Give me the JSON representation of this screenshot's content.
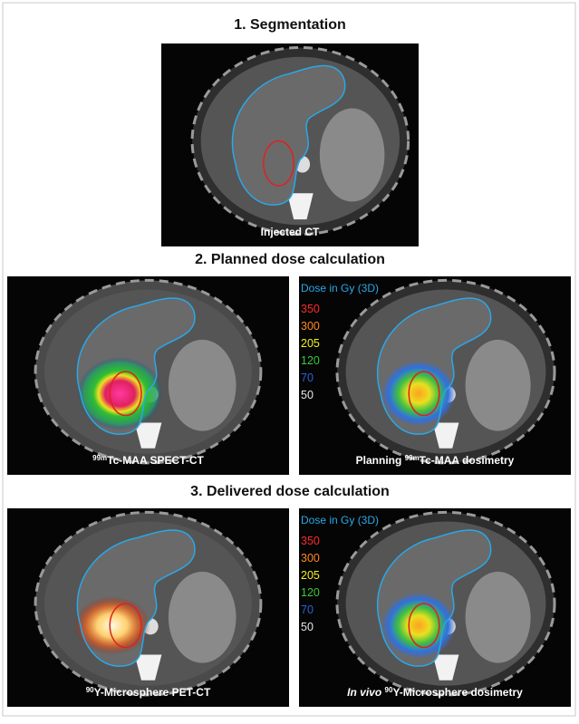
{
  "sections": [
    {
      "title": "1. Segmentation",
      "panels": [
        {
          "caption": [
            {
              "text": "Injected CT"
            }
          ]
        }
      ]
    },
    {
      "title": "2. Planned dose calculation",
      "panels": [
        {
          "caption": [
            {
              "text": "99m",
              "sup": true
            },
            {
              "text": "Tc-MAA SPECT-CT"
            }
          ]
        },
        {
          "caption": [
            {
              "text": "Planning "
            },
            {
              "text": "99m",
              "sup": true
            },
            {
              "text": "Tc-MAA dosimetry"
            }
          ],
          "legend": {
            "title": "Dose in Gy (3D)",
            "levels": [
              {
                "label": "350",
                "color": "#ff2a2a"
              },
              {
                "label": "300",
                "color": "#ff8a1e"
              },
              {
                "label": "205",
                "color": "#f2f21e"
              },
              {
                "label": "120",
                "color": "#3cc83c"
              },
              {
                "label": "70",
                "color": "#2a62d8"
              },
              {
                "label": "50",
                "color": "#e6e6e6"
              }
            ]
          }
        }
      ]
    },
    {
      "title": "3. Delivered dose calculation",
      "panels": [
        {
          "caption": [
            {
              "text": "90",
              "sup": true
            },
            {
              "text": "Y-Microsphere PET-CT"
            }
          ]
        },
        {
          "caption": [
            {
              "text": "In vivo",
              "italic": true
            },
            {
              "text": " "
            },
            {
              "text": "90",
              "sup": true
            },
            {
              "text": "Y-Microsphere dosimetry"
            }
          ],
          "legend": {
            "title": "Dose in Gy (3D)",
            "levels": [
              {
                "label": "350",
                "color": "#ff2a2a"
              },
              {
                "label": "300",
                "color": "#ff8a1e"
              },
              {
                "label": "205",
                "color": "#f2f21e"
              },
              {
                "label": "120",
                "color": "#3cc83c"
              },
              {
                "label": "70",
                "color": "#2a62d8"
              },
              {
                "label": "50",
                "color": "#e6e6e6"
              }
            ]
          }
        }
      ]
    }
  ]
}
